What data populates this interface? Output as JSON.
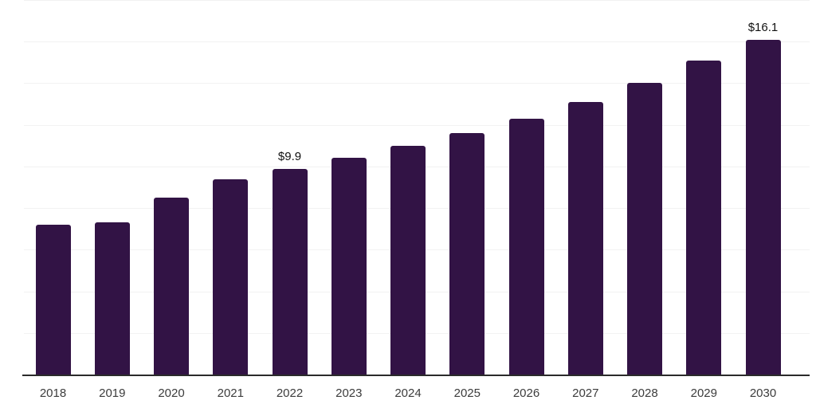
{
  "chart_data": {
    "type": "bar",
    "title": "",
    "xlabel": "",
    "ylabel": "",
    "categories": [
      "2018",
      "2019",
      "2020",
      "2021",
      "2022",
      "2023",
      "2024",
      "2025",
      "2026",
      "2027",
      "2028",
      "2029",
      "2030"
    ],
    "values": [
      7.2,
      7.3,
      8.5,
      9.4,
      9.9,
      10.4,
      11.0,
      11.6,
      12.3,
      13.1,
      14.0,
      15.1,
      16.1
    ],
    "data_labels": [
      "",
      "",
      "",
      "",
      "$9.9",
      "",
      "",
      "",
      "",
      "",
      "",
      "",
      "$16.1"
    ],
    "ylim": [
      0,
      18
    ],
    "gridline_step": 2,
    "grid": true,
    "legend": false,
    "y_axis_labels_shown": false,
    "colors": {
      "bar": "#321345",
      "value_label": "#111111",
      "x_axis_label": "#3c3c3c",
      "gridline": "#f2f2f2",
      "axis_line": "#2b2b2b",
      "background": "#ffffff"
    }
  }
}
